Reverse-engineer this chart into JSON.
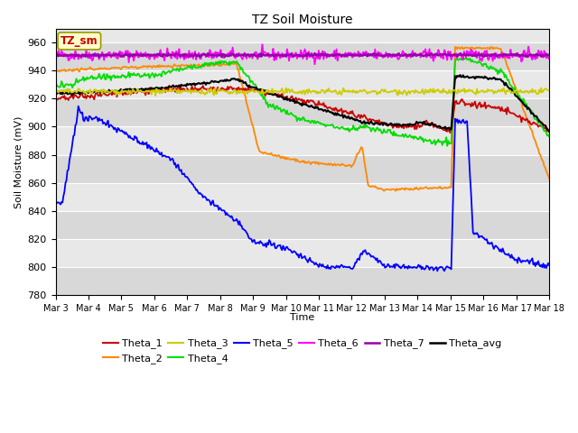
{
  "title": "TZ Soil Moisture",
  "xlabel": "Time",
  "ylabel": "Soil Moisture (mV)",
  "ylim": [
    780,
    970
  ],
  "xlim": [
    0,
    15
  ],
  "xtick_labels": [
    "Mar 3",
    "Mar 4",
    "Mar 5",
    "Mar 6",
    "Mar 7",
    "Mar 8",
    "Mar 9",
    "Mar 10",
    "Mar 11",
    "Mar 12",
    "Mar 13",
    "Mar 14",
    "Mar 15",
    "Mar 16",
    "Mar 17",
    "Mar 18"
  ],
  "bg_color": "#ffffff",
  "plot_bg": "#e8e8e8",
  "label_box_text": "TZ_sm",
  "series_colors": {
    "Theta_1": "#cc0000",
    "Theta_2": "#ff8800",
    "Theta_3": "#cccc00",
    "Theta_4": "#00dd00",
    "Theta_5": "#0000ff",
    "Theta_6": "#ff00ff",
    "Theta_7": "#9900aa",
    "Theta_avg": "#000000"
  },
  "yticks": [
    780,
    800,
    820,
    840,
    860,
    880,
    900,
    920,
    940,
    960
  ]
}
